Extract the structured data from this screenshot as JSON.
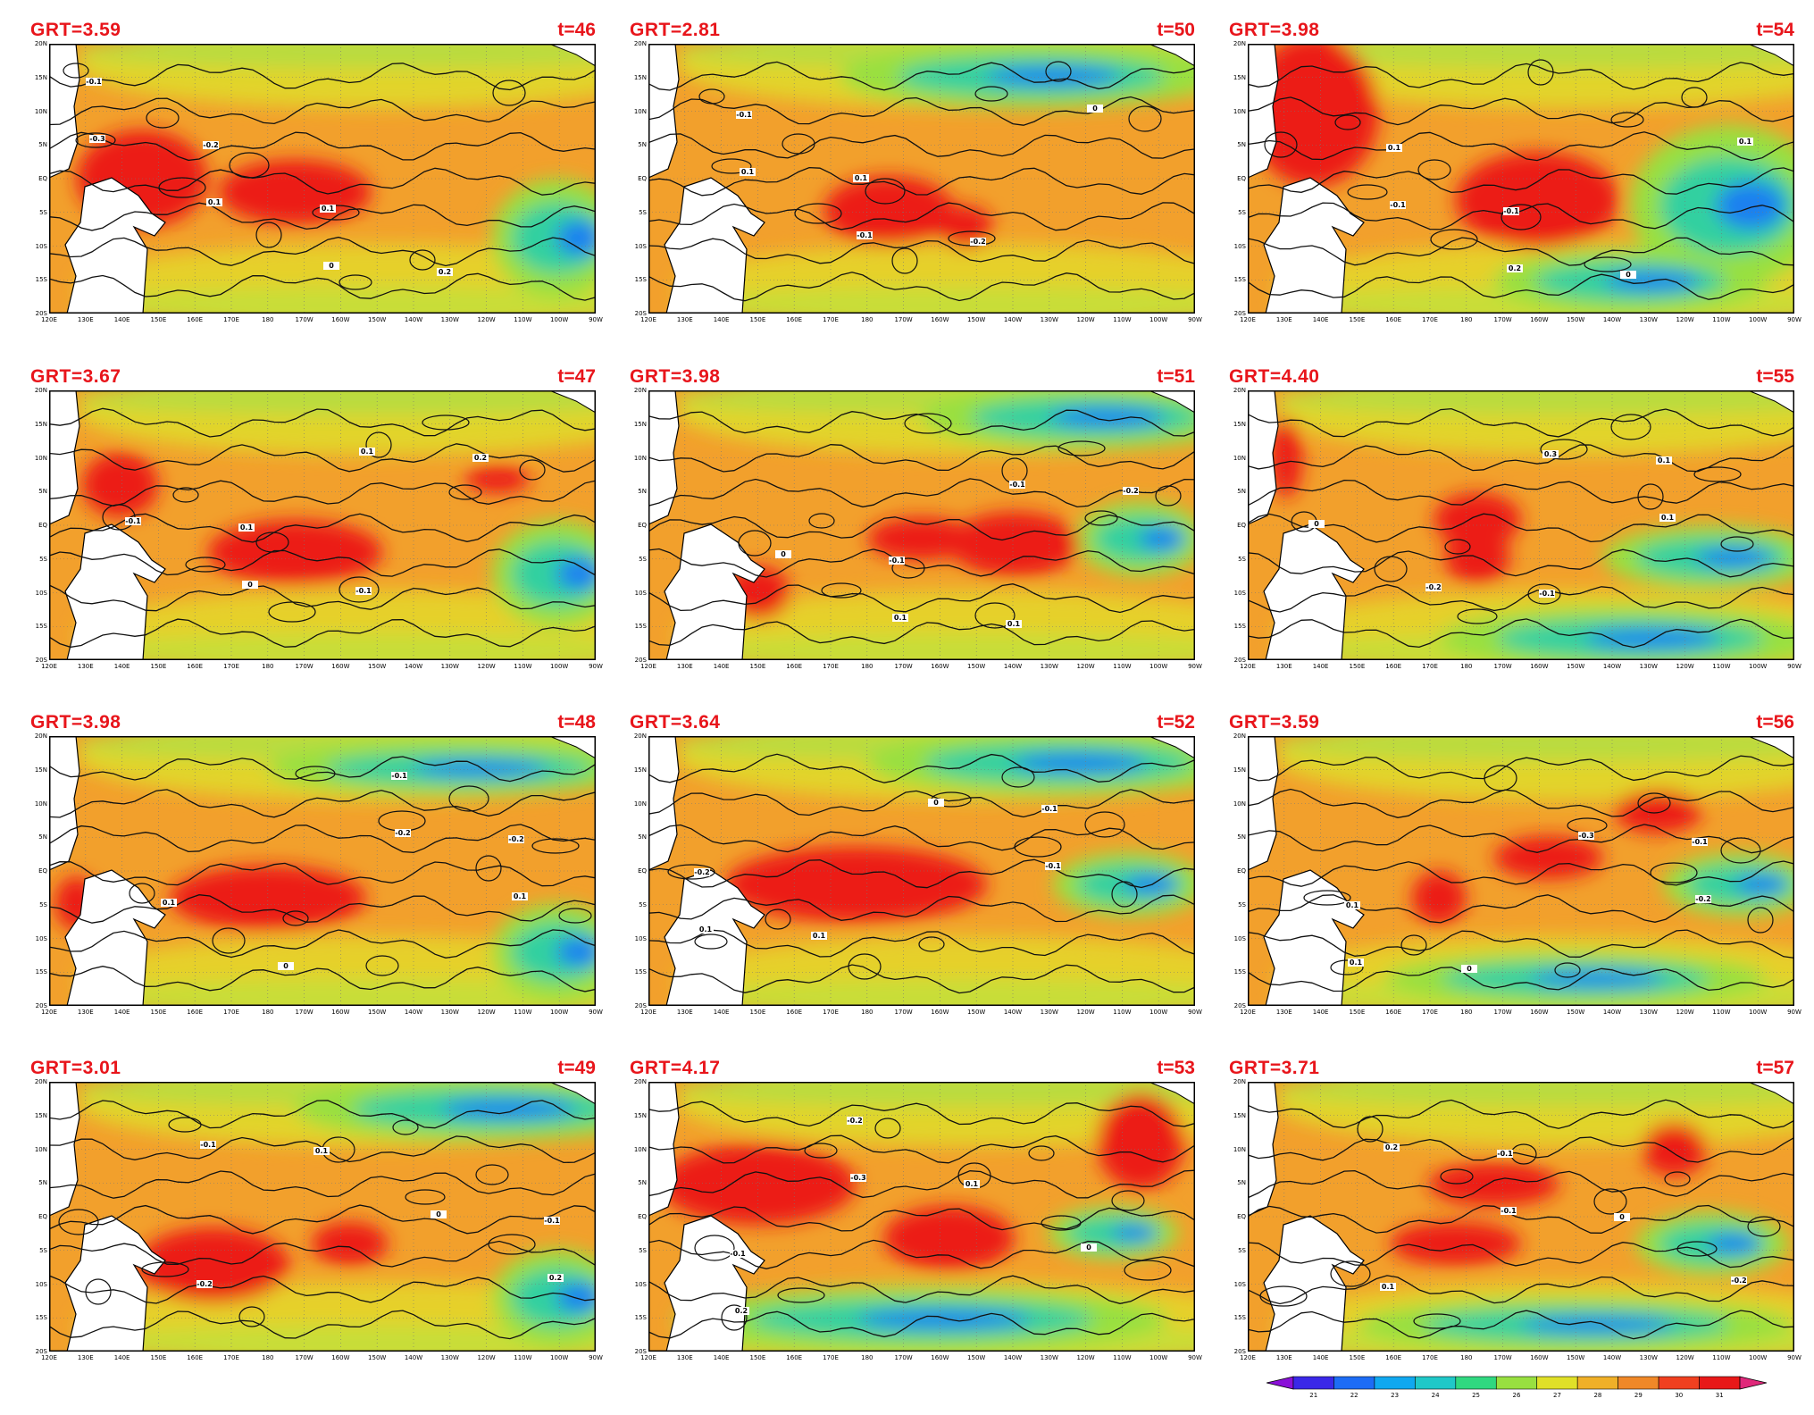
{
  "panels": [
    {
      "grt": "GRT=3.59",
      "t": "t=46",
      "col": 0,
      "row": 0,
      "warm": [
        [
          0.17,
          0.5,
          0.12,
          0.18
        ],
        [
          0.45,
          0.55,
          0.14,
          0.12
        ]
      ],
      "cool": [
        [
          0.93,
          0.72,
          0.12,
          0.22
        ]
      ],
      "labels": [
        "-0.1",
        "-0.2",
        "0.1",
        "0.2",
        "-0.3",
        "0.1",
        "0"
      ]
    },
    {
      "grt": "GRT=2.81",
      "t": "t=50",
      "col": 1,
      "row": 0,
      "warm": [
        [
          0.44,
          0.62,
          0.12,
          0.13
        ],
        [
          0.58,
          0.68,
          0.05,
          0.08
        ]
      ],
      "cool": [
        [
          0.7,
          0.12,
          0.35,
          0.12
        ]
      ],
      "labels": [
        "-0.1",
        "0.1",
        "-0.2",
        "0",
        "0.1",
        "-0.1"
      ]
    },
    {
      "grt": "GRT=3.98",
      "t": "t=54",
      "col": 2,
      "row": 0,
      "warm": [
        [
          0.12,
          0.25,
          0.12,
          0.28
        ],
        [
          0.53,
          0.58,
          0.15,
          0.18
        ]
      ],
      "cool": [
        [
          0.88,
          0.6,
          0.18,
          0.3
        ],
        [
          0.7,
          0.88,
          0.25,
          0.12
        ]
      ],
      "labels": [
        "0.1",
        "-0.1",
        "0",
        "0.1",
        "-0.1",
        "0.2"
      ]
    },
    {
      "grt": "GRT=3.67",
      "t": "t=47",
      "col": 0,
      "row": 1,
      "warm": [
        [
          0.13,
          0.35,
          0.07,
          0.12
        ],
        [
          0.45,
          0.6,
          0.16,
          0.12
        ],
        [
          0.82,
          0.33,
          0.06,
          0.05
        ]
      ],
      "cool": [
        [
          0.93,
          0.68,
          0.12,
          0.2
        ]
      ],
      "labels": [
        "0.1",
        "-0.1",
        "0.2",
        "-0.1",
        "0",
        "0.1"
      ]
    },
    {
      "grt": "GRT=3.98",
      "t": "t=51",
      "col": 1,
      "row": 1,
      "warm": [
        [
          0.67,
          0.57,
          0.12,
          0.12
        ],
        [
          0.5,
          0.55,
          0.1,
          0.08
        ],
        [
          0.2,
          0.75,
          0.06,
          0.1
        ]
      ],
      "cool": [
        [
          0.9,
          0.55,
          0.12,
          0.14
        ],
        [
          0.8,
          0.1,
          0.3,
          0.12
        ]
      ],
      "labels": [
        "-0.1",
        "0.1",
        "-0.2",
        "0",
        "0.1",
        "-0.1"
      ]
    },
    {
      "grt": "GRT=4.40",
      "t": "t=55",
      "col": 2,
      "row": 1,
      "warm": [
        [
          0.42,
          0.48,
          0.08,
          0.1
        ],
        [
          0.42,
          0.62,
          0.06,
          0.1
        ],
        [
          0.07,
          0.25,
          0.03,
          0.15
        ]
      ],
      "cool": [
        [
          0.85,
          0.62,
          0.2,
          0.12
        ],
        [
          0.7,
          0.92,
          0.35,
          0.12
        ]
      ],
      "labels": [
        "-0.1",
        "0.1",
        "0",
        "-0.2",
        "0.3",
        "0.1"
      ]
    },
    {
      "grt": "GRT=3.98",
      "t": "t=48",
      "col": 0,
      "row": 2,
      "warm": [
        [
          0.4,
          0.6,
          0.18,
          0.12
        ],
        [
          0.05,
          0.62,
          0.04,
          0.1
        ]
      ],
      "cool": [
        [
          0.93,
          0.8,
          0.12,
          0.18
        ],
        [
          0.75,
          0.12,
          0.35,
          0.1
        ]
      ],
      "labels": [
        "-0.1",
        "-0.2",
        "0.1",
        "0",
        "-0.2",
        "0.1"
      ]
    },
    {
      "grt": "GRT=3.64",
      "t": "t=52",
      "col": 1,
      "row": 2,
      "warm": [
        [
          0.38,
          0.55,
          0.24,
          0.14
        ]
      ],
      "cool": [
        [
          0.88,
          0.55,
          0.14,
          0.12
        ],
        [
          0.75,
          0.1,
          0.35,
          0.12
        ]
      ],
      "labels": [
        "-0.1",
        "-0.2",
        "0.1",
        "0",
        "-0.1",
        "0.1"
      ]
    },
    {
      "grt": "GRT=3.59",
      "t": "t=56",
      "col": 2,
      "row": 2,
      "warm": [
        [
          0.55,
          0.45,
          0.1,
          0.08
        ],
        [
          0.75,
          0.28,
          0.08,
          0.08
        ],
        [
          0.35,
          0.6,
          0.05,
          0.1
        ]
      ],
      "cool": [
        [
          0.9,
          0.55,
          0.14,
          0.12
        ],
        [
          0.6,
          0.9,
          0.35,
          0.1
        ]
      ],
      "labels": [
        "-0.1",
        "0.1",
        "0",
        "-0.3",
        "-0.2",
        "0.1"
      ]
    },
    {
      "grt": "GRT=3.01",
      "t": "t=49",
      "col": 0,
      "row": 3,
      "warm": [
        [
          0.3,
          0.68,
          0.14,
          0.14
        ],
        [
          0.55,
          0.6,
          0.07,
          0.08
        ]
      ],
      "cool": [
        [
          0.93,
          0.8,
          0.12,
          0.18
        ],
        [
          0.8,
          0.1,
          0.35,
          0.12
        ]
      ],
      "labels": [
        "-0.1",
        "-0.2",
        "0.1",
        "0",
        "0.2",
        "-0.1"
      ]
    },
    {
      "grt": "GRT=4.17",
      "t": "t=53",
      "col": 1,
      "row": 3,
      "warm": [
        [
          0.2,
          0.38,
          0.18,
          0.15
        ],
        [
          0.55,
          0.58,
          0.12,
          0.12
        ],
        [
          0.9,
          0.22,
          0.08,
          0.18
        ]
      ],
      "cool": [
        [
          0.85,
          0.56,
          0.12,
          0.1
        ],
        [
          0.5,
          0.88,
          0.45,
          0.12
        ]
      ],
      "labels": [
        "-0.1",
        "-0.2",
        "0.1",
        "0",
        "0.2",
        "-0.3"
      ]
    },
    {
      "grt": "GRT=3.71",
      "t": "t=57",
      "col": 2,
      "row": 3,
      "warm": [
        [
          0.45,
          0.38,
          0.12,
          0.08
        ],
        [
          0.38,
          0.6,
          0.12,
          0.08
        ],
        [
          0.78,
          0.25,
          0.06,
          0.1
        ]
      ],
      "cool": [
        [
          0.85,
          0.6,
          0.14,
          0.12
        ],
        [
          0.6,
          0.9,
          0.4,
          0.1
        ]
      ],
      "labels": [
        "0.1",
        "-0.1",
        "0",
        "-0.2",
        "0.2",
        "-0.1"
      ]
    }
  ],
  "axes": {
    "y_ticks": [
      "20N",
      "15N",
      "10N",
      "5N",
      "EQ",
      "5S",
      "10S",
      "15S",
      "20S"
    ],
    "x_ticks": [
      "120E",
      "130E",
      "140E",
      "150E",
      "160E",
      "170E",
      "180",
      "170W",
      "160W",
      "150W",
      "140W",
      "130W",
      "120W",
      "110W",
      "100W",
      "90W"
    ]
  },
  "colorbar": {
    "ticks": [
      "21",
      "22",
      "23",
      "24",
      "25",
      "26",
      "27",
      "28",
      "29",
      "30",
      "31"
    ],
    "colors": [
      "#8a10d8",
      "#3a28e8",
      "#1d6cf5",
      "#10a8f0",
      "#20c8c8",
      "#30d880",
      "#98e040",
      "#e0e028",
      "#f0b028",
      "#f08828",
      "#f04020",
      "#e81818",
      "#e0287a"
    ]
  },
  "chart_data": {
    "type": "heatmap",
    "title": "",
    "xlabel": "",
    "ylabel": "",
    "xlim": [
      "120E",
      "90W"
    ],
    "ylim": [
      "20S",
      "20N"
    ],
    "colorbar_range": [
      21,
      31
    ],
    "panels": [
      {
        "label": "t=46",
        "GRT": 3.59
      },
      {
        "label": "t=47",
        "GRT": 3.67
      },
      {
        "label": "t=48",
        "GRT": 3.98
      },
      {
        "label": "t=49",
        "GRT": 3.01
      },
      {
        "label": "t=50",
        "GRT": 2.81
      },
      {
        "label": "t=51",
        "GRT": 3.98
      },
      {
        "label": "t=52",
        "GRT": 3.64
      },
      {
        "label": "t=53",
        "GRT": 4.17
      },
      {
        "label": "t=54",
        "GRT": 3.98
      },
      {
        "label": "t=55",
        "GRT": 4.4
      },
      {
        "label": "t=56",
        "GRT": 3.59
      },
      {
        "label": "t=57",
        "GRT": 3.71
      }
    ]
  }
}
